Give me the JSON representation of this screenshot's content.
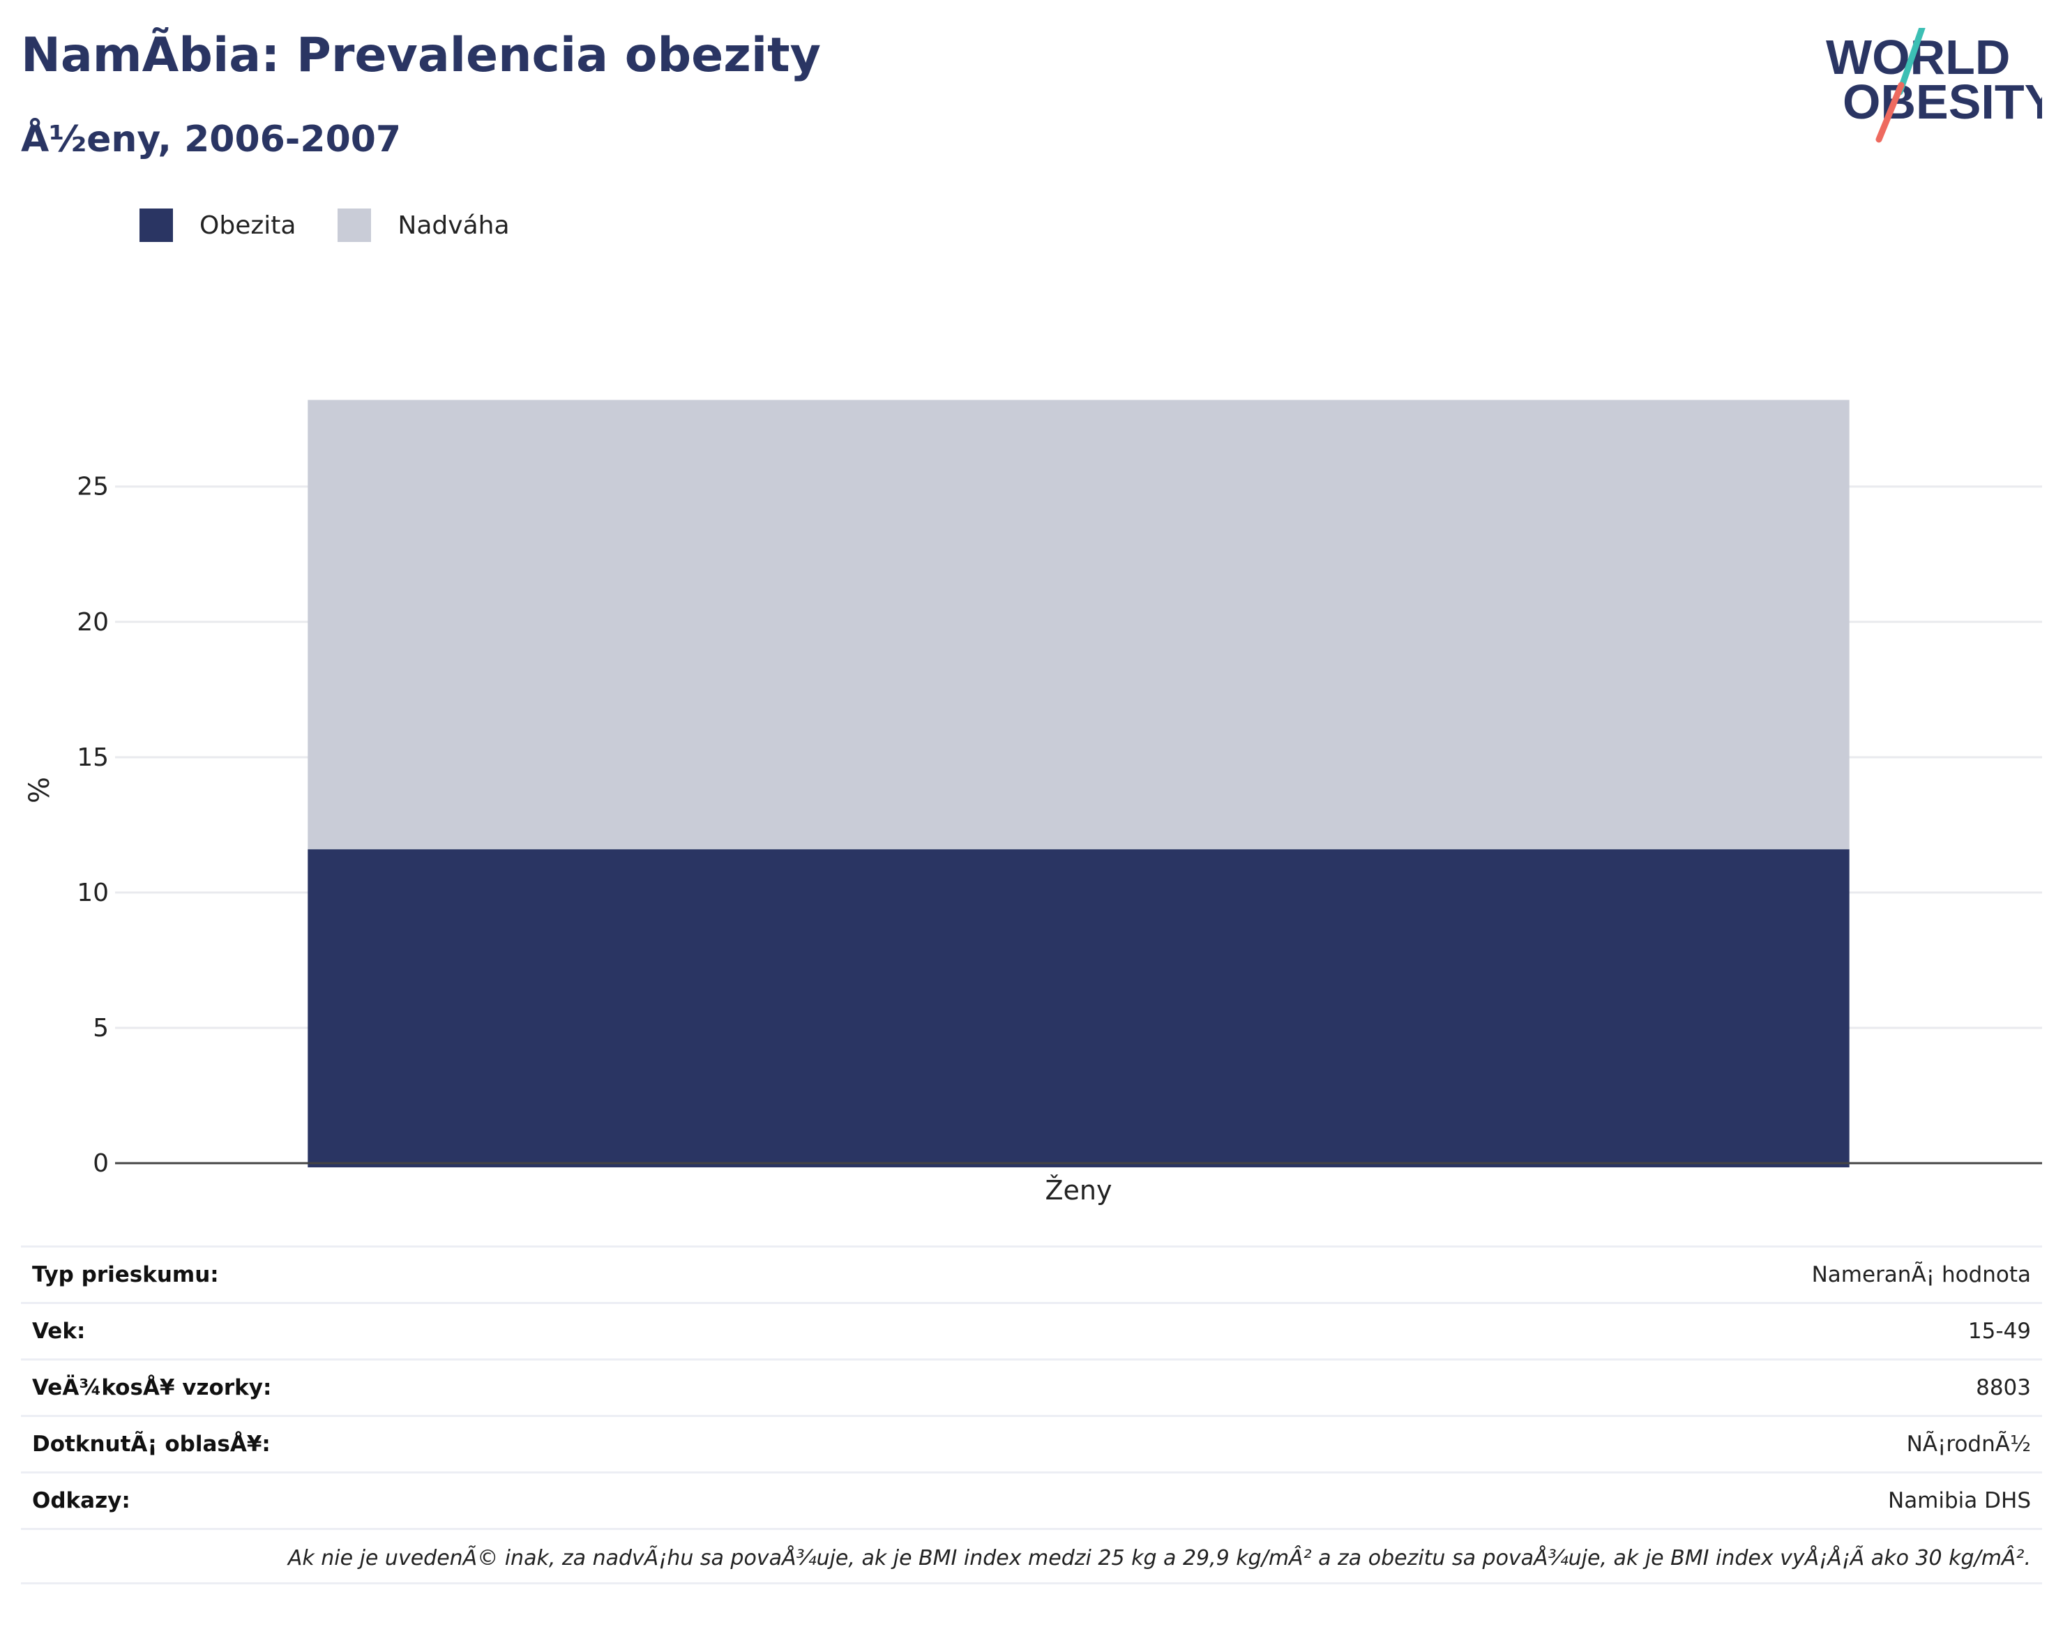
{
  "title": "NamÃbia: Prevalencia obezity",
  "subtitle": "Å½eny, 2006-2007",
  "logo": {
    "line1": "WORLD",
    "line2": "OBESITY"
  },
  "colors": {
    "obesity": "#2a3563",
    "overweight": "#c9ccd7",
    "grid": "#e9eaee",
    "axis": "#444444"
  },
  "chart_data": {
    "type": "bar",
    "stacked": true,
    "categories": [
      "Ženy"
    ],
    "series": [
      {
        "name": "Obezita",
        "values": [
          11.6
        ]
      },
      {
        "name": "Nadváha",
        "values": [
          16.6
        ]
      }
    ],
    "xlabel": "",
    "ylabel": "%",
    "ylim": [
      0,
      28.6
    ],
    "yticks": [
      0,
      5,
      10,
      15,
      20,
      25
    ],
    "grid": true,
    "legend": "top-left"
  },
  "info": {
    "rows": [
      {
        "key": "Typ prieskumu:",
        "value": "NameranÃ¡ hodnota"
      },
      {
        "key": "Vek:",
        "value": "15-49"
      },
      {
        "key": "VeÄ¾kosÅ¥ vzorky:",
        "value": "8803"
      },
      {
        "key": "DotknutÃ¡ oblasÅ¥:",
        "value": "NÃ¡rodnÃ½"
      },
      {
        "key": "Odkazy:",
        "value": "Namibia DHS"
      }
    ],
    "note": "Ak nie je uvedenÃ© inak, za nadvÃ¡hu sa povaÅ¾uje, ak je BMI index medzi 25 kg a 29,9 kg/mÂ² a za obezitu sa povaÅ¾uje, ak je BMI index vyÅ¡Å¡Ã ako 30 kg/mÂ²."
  }
}
